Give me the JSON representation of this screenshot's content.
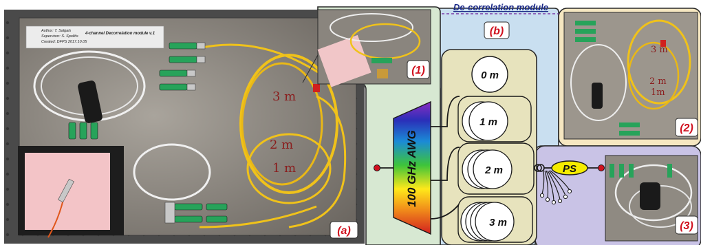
{
  "title": "De-correlation module",
  "panels": {
    "a": "(a)",
    "b": "(b)",
    "inset1": "(1)",
    "inset2": "(2)",
    "inset3": "(3)"
  },
  "awg_label": "100 GHz AWG",
  "ps_label": "PS",
  "delays": [
    "0 m",
    "1 m",
    "2 m",
    "3 m"
  ],
  "photo_annotations": {
    "note_line1": "Author: T. Salgals",
    "note_line2": "Supervisor: S. Spolitis",
    "note_line3": "Created: DFPS 2017.10.05",
    "module_name": "4-channel Decorrelation module v.1",
    "fiber_3m": "3 m",
    "fiber_2m": "2 m",
    "fiber_1m": "1 m",
    "inset2_3m": "3 m",
    "inset2_2m": "2 m",
    "inset2_1m": "1m"
  },
  "colors": {
    "panel_b_blue": "#c9dff0",
    "panel_a_green": "#d7e8d2",
    "panel_2_yellow": "#f6e7c1",
    "panel_3_purple": "#c9c3e6",
    "olive_box": "#e7e3bd",
    "label_red": "#d0101e",
    "ps_yellow": "#f5ec00",
    "title_blue": "#1b2a88"
  }
}
